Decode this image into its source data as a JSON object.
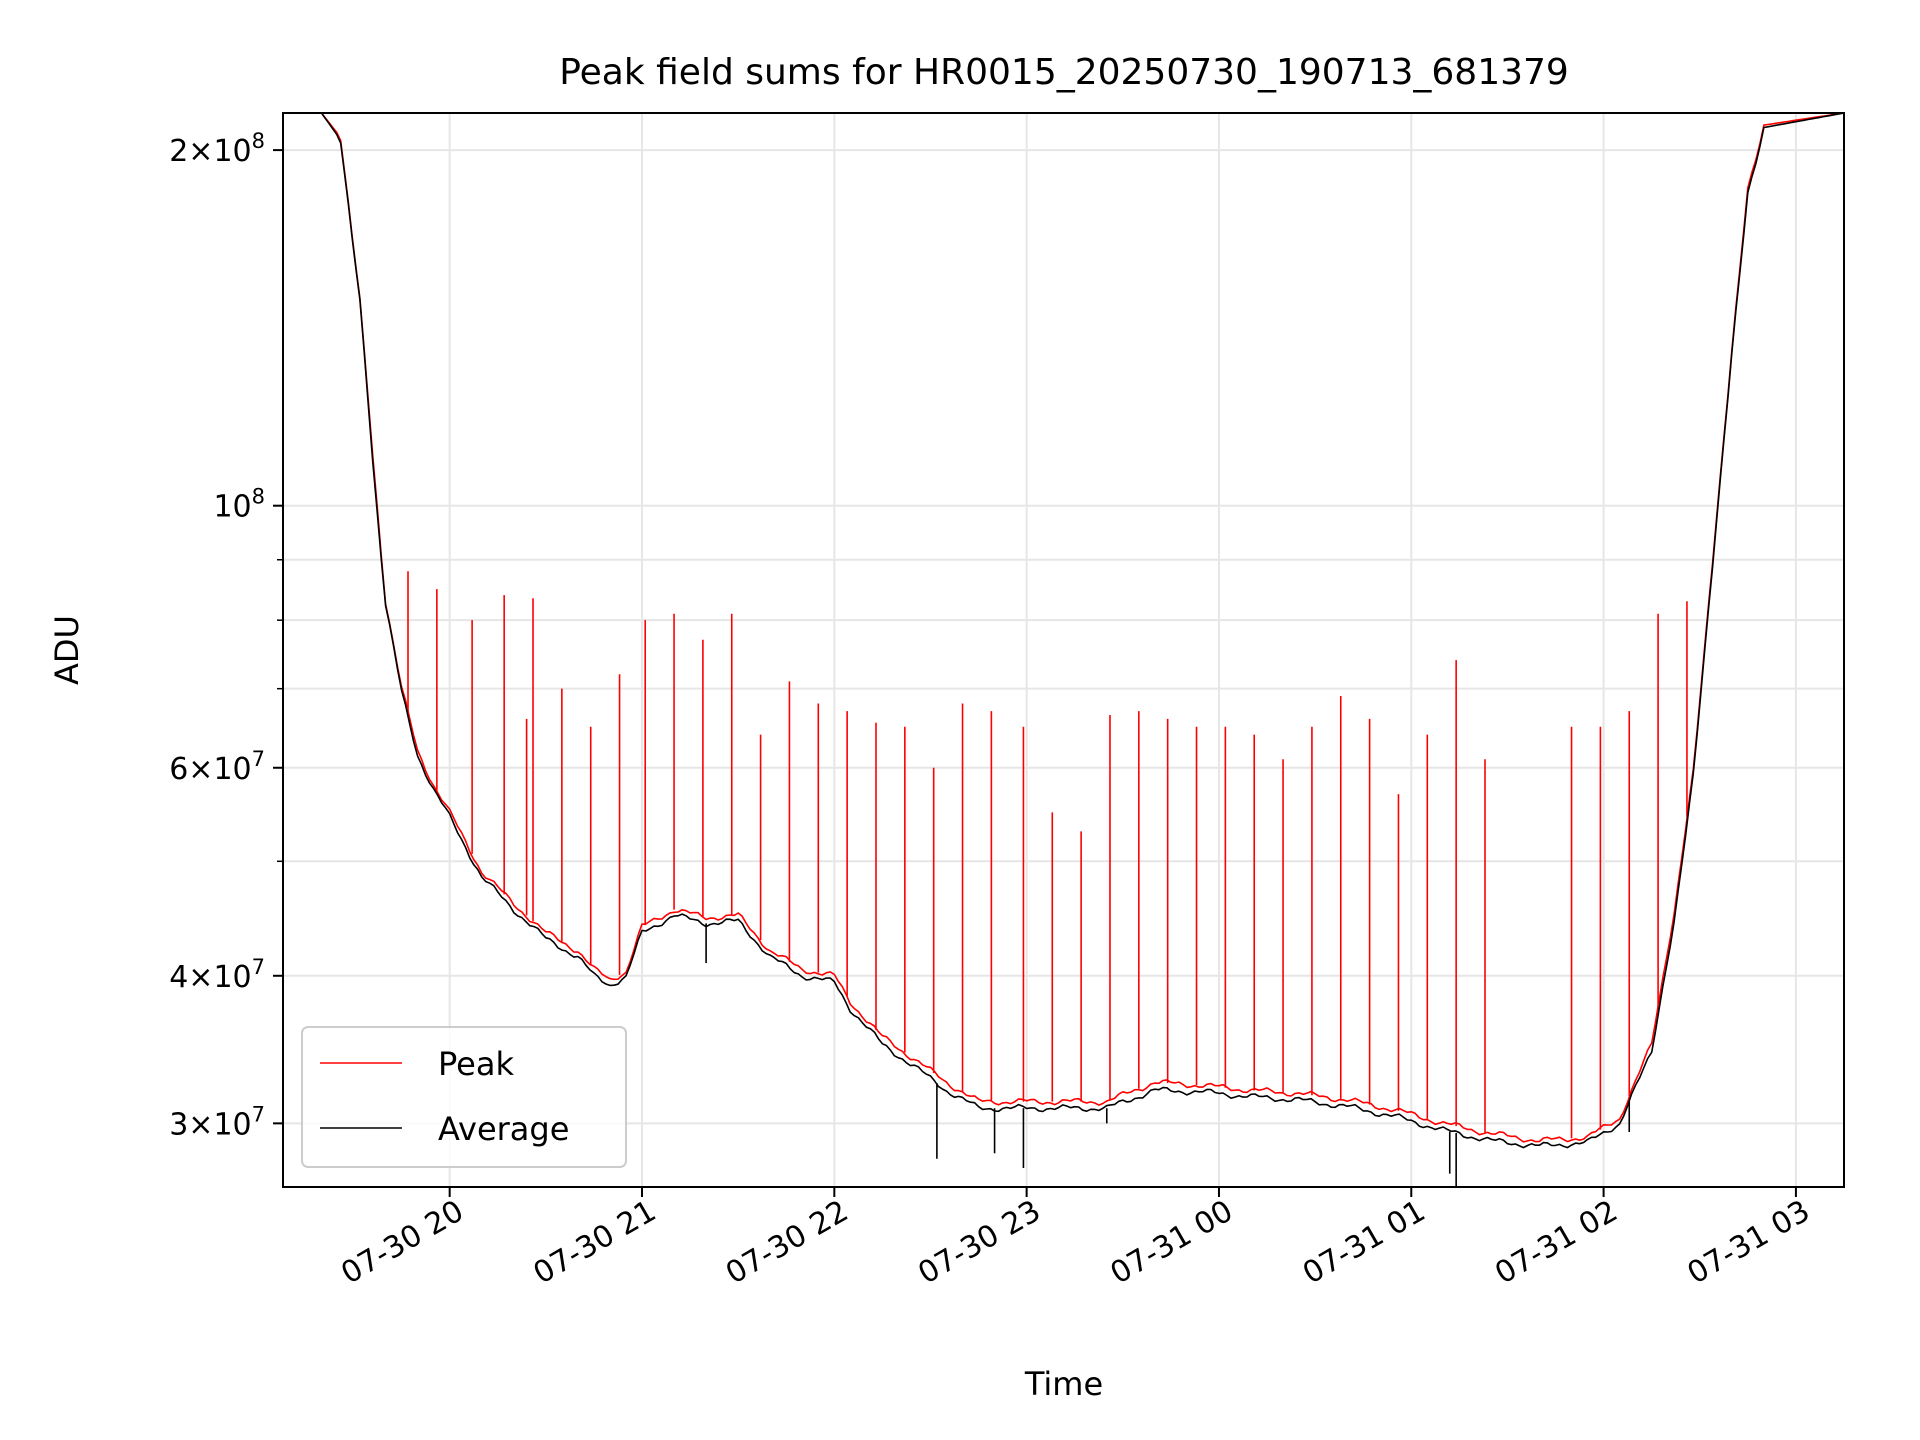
{
  "chart_data": {
    "type": "line",
    "title": "Peak field sums for HR0015_20250730_190713_681379",
    "xlabel": "Time",
    "ylabel": "ADU",
    "yscale": "log",
    "ylim": [
      26500000,
      215000000
    ],
    "xlim": [
      "2025-07-30 19:08",
      "2025-07-31 03:15"
    ],
    "grid": true,
    "legend_position": "lower-left",
    "x_ticks": [
      {
        "t": "2025-07-30 20:00",
        "label": "07-30 20"
      },
      {
        "t": "2025-07-30 21:00",
        "label": "07-30 21"
      },
      {
        "t": "2025-07-30 22:00",
        "label": "07-30 22"
      },
      {
        "t": "2025-07-30 23:00",
        "label": "07-30 23"
      },
      {
        "t": "2025-07-31 00:00",
        "label": "07-31 00"
      },
      {
        "t": "2025-07-31 01:00",
        "label": "07-31 01"
      },
      {
        "t": "2025-07-31 02:00",
        "label": "07-31 02"
      },
      {
        "t": "2025-07-31 03:00",
        "label": "07-31 03"
      }
    ],
    "y_ticks": [
      {
        "value": 30000000,
        "mant": "3",
        "exp": "7"
      },
      {
        "value": 40000000,
        "mant": "4",
        "exp": "7"
      },
      {
        "value": 60000000,
        "mant": "6",
        "exp": "7"
      },
      {
        "value": 100000000,
        "mant": "",
        "exp": "8"
      },
      {
        "value": 200000000,
        "mant": "2",
        "exp": "8"
      }
    ],
    "y_minor_ticks": [
      50000000,
      70000000,
      80000000,
      90000000
    ],
    "series": [
      {
        "name": "Peak",
        "color": "#ff0000",
        "x": [
          "2025-07-30 19:10",
          "2025-07-30 19:20",
          "2025-07-30 19:26",
          "2025-07-30 19:32",
          "2025-07-30 19:36",
          "2025-07-30 19:40",
          "2025-07-30 19:45",
          "2025-07-30 19:50",
          "2025-07-30 19:55",
          "2025-07-30 20:00",
          "2025-07-30 20:10",
          "2025-07-30 20:20",
          "2025-07-30 20:30",
          "2025-07-30 20:40",
          "2025-07-30 20:45",
          "2025-07-30 20:50",
          "2025-07-30 20:55",
          "2025-07-30 21:00",
          "2025-07-30 21:10",
          "2025-07-30 21:20",
          "2025-07-30 21:30",
          "2025-07-30 21:40",
          "2025-07-30 21:50",
          "2025-07-30 22:00",
          "2025-07-30 22:05",
          "2025-07-30 22:15",
          "2025-07-30 22:25",
          "2025-07-30 22:35",
          "2025-07-30 22:45",
          "2025-07-30 23:00",
          "2025-07-30 23:20",
          "2025-07-30 23:25",
          "2025-07-30 23:40",
          "2025-07-30 23:55",
          "2025-07-31 00:10",
          "2025-07-31 00:25",
          "2025-07-31 00:40",
          "2025-07-31 00:55",
          "2025-07-31 01:10",
          "2025-07-31 01:25",
          "2025-07-31 01:40",
          "2025-07-31 01:55",
          "2025-07-31 02:05",
          "2025-07-31 02:15",
          "2025-07-31 02:22",
          "2025-07-31 02:28",
          "2025-07-31 02:34",
          "2025-07-31 02:40",
          "2025-07-31 02:45",
          "2025-07-31 02:50",
          "2025-07-31 03:15"
        ],
        "y": [
          215000000,
          215000000,
          205000000,
          150000000,
          110000000,
          83000000,
          70000000,
          62000000,
          58000000,
          55000000,
          49000000,
          46000000,
          43500000,
          42000000,
          40500000,
          39700000,
          40300000,
          44000000,
          45500000,
          44800000,
          45000000,
          42000000,
          40500000,
          40000000,
          38000000,
          35500000,
          34000000,
          32500000,
          31300000,
          31300000,
          31300000,
          31300000,
          32500000,
          32300000,
          32000000,
          31800000,
          31400000,
          30800000,
          30000000,
          29400000,
          29000000,
          29200000,
          30300000,
          35000000,
          45000000,
          60000000,
          90000000,
          135000000,
          185000000,
          210000000,
          215000000
        ],
        "spikes": [
          {
            "t": "2025-07-30 19:47",
            "y": 88000000
          },
          {
            "t": "2025-07-30 19:56",
            "y": 85000000
          },
          {
            "t": "2025-07-30 20:07",
            "y": 80000000
          },
          {
            "t": "2025-07-30 20:17",
            "y": 84000000
          },
          {
            "t": "2025-07-30 20:24",
            "y": 66000000
          },
          {
            "t": "2025-07-30 20:26",
            "y": 83500000
          },
          {
            "t": "2025-07-30 20:35",
            "y": 70000000
          },
          {
            "t": "2025-07-30 20:44",
            "y": 65000000
          },
          {
            "t": "2025-07-30 20:53",
            "y": 72000000
          },
          {
            "t": "2025-07-30 21:01",
            "y": 80000000
          },
          {
            "t": "2025-07-30 21:10",
            "y": 81000000
          },
          {
            "t": "2025-07-30 21:19",
            "y": 77000000
          },
          {
            "t": "2025-07-30 21:28",
            "y": 81000000
          },
          {
            "t": "2025-07-30 21:37",
            "y": 64000000
          },
          {
            "t": "2025-07-30 21:46",
            "y": 71000000
          },
          {
            "t": "2025-07-30 21:55",
            "y": 68000000
          },
          {
            "t": "2025-07-30 22:04",
            "y": 67000000
          },
          {
            "t": "2025-07-30 22:13",
            "y": 65500000
          },
          {
            "t": "2025-07-30 22:22",
            "y": 65000000
          },
          {
            "t": "2025-07-30 22:31",
            "y": 60000000
          },
          {
            "t": "2025-07-30 22:40",
            "y": 68000000
          },
          {
            "t": "2025-07-30 22:49",
            "y": 67000000
          },
          {
            "t": "2025-07-30 22:59",
            "y": 65000000
          },
          {
            "t": "2025-07-30 23:08",
            "y": 55000000
          },
          {
            "t": "2025-07-30 23:17",
            "y": 53000000
          },
          {
            "t": "2025-07-30 23:26",
            "y": 66500000
          },
          {
            "t": "2025-07-30 23:35",
            "y": 67000000
          },
          {
            "t": "2025-07-30 23:44",
            "y": 66000000
          },
          {
            "t": "2025-07-30 23:53",
            "y": 65000000
          },
          {
            "t": "2025-07-31 00:02",
            "y": 65000000
          },
          {
            "t": "2025-07-31 00:11",
            "y": 64000000
          },
          {
            "t": "2025-07-31 00:20",
            "y": 61000000
          },
          {
            "t": "2025-07-31 00:29",
            "y": 65000000
          },
          {
            "t": "2025-07-31 00:38",
            "y": 69000000
          },
          {
            "t": "2025-07-31 00:47",
            "y": 66000000
          },
          {
            "t": "2025-07-31 00:56",
            "y": 57000000
          },
          {
            "t": "2025-07-31 01:05",
            "y": 64000000
          },
          {
            "t": "2025-07-31 01:14",
            "y": 74000000
          },
          {
            "t": "2025-07-31 01:23",
            "y": 61000000
          },
          {
            "t": "2025-07-31 01:50",
            "y": 65000000
          },
          {
            "t": "2025-07-31 01:59",
            "y": 65000000
          },
          {
            "t": "2025-07-31 02:08",
            "y": 67000000
          },
          {
            "t": "2025-07-31 02:17",
            "y": 81000000
          },
          {
            "t": "2025-07-31 02:26",
            "y": 83000000
          }
        ]
      },
      {
        "name": "Average",
        "color": "#000000",
        "x": [
          "2025-07-30 19:10",
          "2025-07-30 19:20",
          "2025-07-30 19:26",
          "2025-07-30 19:32",
          "2025-07-30 19:36",
          "2025-07-30 19:40",
          "2025-07-30 19:45",
          "2025-07-30 19:50",
          "2025-07-30 19:55",
          "2025-07-30 20:00",
          "2025-07-30 20:10",
          "2025-07-30 20:20",
          "2025-07-30 20:30",
          "2025-07-30 20:40",
          "2025-07-30 20:45",
          "2025-07-30 20:50",
          "2025-07-30 20:55",
          "2025-07-30 21:00",
          "2025-07-30 21:10",
          "2025-07-30 21:20",
          "2025-07-30 21:30",
          "2025-07-30 21:40",
          "2025-07-30 21:50",
          "2025-07-30 22:00",
          "2025-07-30 22:05",
          "2025-07-30 22:15",
          "2025-07-30 22:25",
          "2025-07-30 22:35",
          "2025-07-30 22:45",
          "2025-07-30 23:00",
          "2025-07-30 23:20",
          "2025-07-30 23:25",
          "2025-07-30 23:40",
          "2025-07-30 23:55",
          "2025-07-31 00:10",
          "2025-07-31 00:25",
          "2025-07-31 00:40",
          "2025-07-31 00:55",
          "2025-07-31 01:10",
          "2025-07-31 01:25",
          "2025-07-31 01:40",
          "2025-07-31 01:55",
          "2025-07-31 02:05",
          "2025-07-31 02:15",
          "2025-07-31 02:22",
          "2025-07-31 02:28",
          "2025-07-31 02:34",
          "2025-07-31 02:40",
          "2025-07-31 02:45",
          "2025-07-31 02:50",
          "2025-07-31 03:15"
        ],
        "y": [
          215000000,
          215000000,
          204000000,
          149000000,
          109000000,
          82500000,
          69500000,
          61500000,
          57500000,
          54500000,
          48500000,
          45500000,
          43000000,
          41500000,
          40000000,
          39300000,
          39900000,
          43500000,
          45000000,
          44300000,
          44500000,
          41500000,
          40000000,
          39500000,
          37500000,
          35000000,
          33500000,
          32000000,
          30900000,
          30900000,
          30900000,
          30900000,
          32000000,
          31900000,
          31600000,
          31400000,
          31000000,
          30400000,
          29600000,
          29000000,
          28700000,
          28900000,
          30000000,
          34500000,
          44500000,
          59500000,
          89000000,
          134000000,
          184000000,
          209000000,
          215000000
        ],
        "dips": [
          {
            "t": "2025-07-30 21:20",
            "y": 41000000
          },
          {
            "t": "2025-07-30 22:32",
            "y": 28000000
          },
          {
            "t": "2025-07-30 22:50",
            "y": 28300000
          },
          {
            "t": "2025-07-30 22:59",
            "y": 27500000
          },
          {
            "t": "2025-07-30 23:25",
            "y": 30000000
          },
          {
            "t": "2025-07-31 01:12",
            "y": 27200000
          },
          {
            "t": "2025-07-31 01:14",
            "y": 26500000
          },
          {
            "t": "2025-07-31 02:08",
            "y": 29500000
          }
        ]
      }
    ]
  }
}
